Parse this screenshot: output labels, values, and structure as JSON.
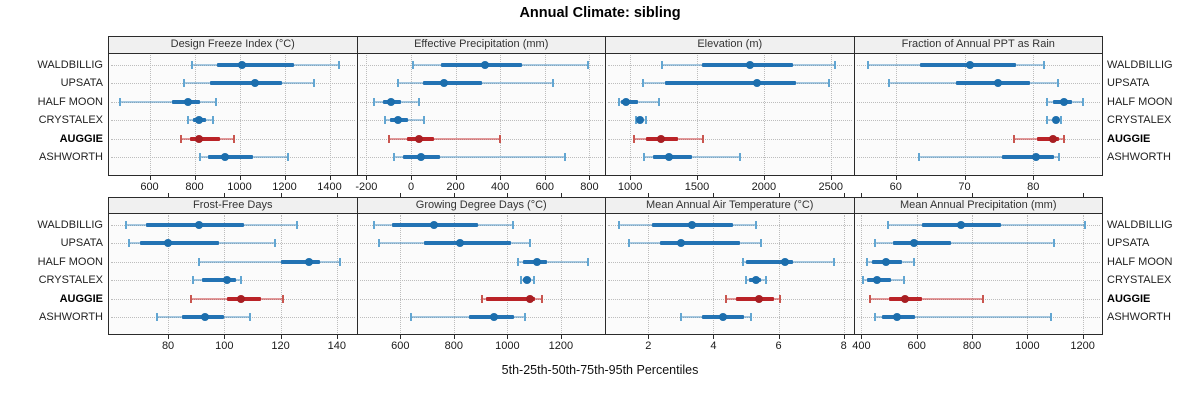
{
  "chart_data": {
    "type": "dotplot-percentiles",
    "title": "Annual Climate: sibling",
    "caption": "5th-25th-50th-75th-95th Percentiles",
    "percentile_labels": [
      "5th",
      "25th",
      "50th",
      "75th",
      "95th"
    ],
    "stations": [
      "WALDBILLIG",
      "UPSATA",
      "HALF MOON",
      "CRYSTALEX",
      "AUGGIE",
      "ASHWORTH"
    ],
    "highlight_station": "AUGGIE",
    "legend_position": "none",
    "grid": true,
    "panels": [
      {
        "title": "Design Freeze Index (°C)",
        "grid_row": 0,
        "grid_col": 0,
        "xlim": [
          420,
          1520
        ],
        "ticks": [
          600,
          800,
          1000,
          1200,
          1400
        ],
        "values": [
          [
            790,
            900,
            1010,
            1240,
            1440
          ],
          [
            755,
            870,
            1070,
            1190,
            1330
          ],
          [
            470,
            700,
            770,
            825,
            895
          ],
          [
            770,
            795,
            820,
            850,
            880
          ],
          [
            740,
            780,
            818,
            915,
            975
          ],
          [
            825,
            860,
            935,
            1060,
            1215
          ]
        ]
      },
      {
        "title": "Effective Precipitation (mm)",
        "grid_row": 0,
        "grid_col": 1,
        "xlim": [
          -240,
          870
        ],
        "ticks": [
          -200,
          0,
          200,
          400,
          600,
          800
        ],
        "values": [
          [
            10,
            135,
            330,
            500,
            795
          ],
          [
            -60,
            55,
            150,
            320,
            635
          ],
          [
            -165,
            -125,
            -90,
            -45,
            35
          ],
          [
            -115,
            -95,
            -60,
            -15,
            60
          ],
          [
            -100,
            -20,
            35,
            105,
            400
          ],
          [
            -75,
            -35,
            45,
            130,
            690
          ]
        ]
      },
      {
        "title": "Elevation (m)",
        "grid_row": 0,
        "grid_col": 2,
        "xlim": [
          820,
          2670
        ],
        "ticks": [
          1000,
          1500,
          2000,
          2500
        ],
        "values": [
          [
            1240,
            1540,
            1900,
            2220,
            2530
          ],
          [
            1100,
            1260,
            1945,
            2240,
            2490
          ],
          [
            920,
            935,
            970,
            1060,
            1215
          ],
          [
            1045,
            1055,
            1075,
            1090,
            1120
          ],
          [
            1030,
            1120,
            1230,
            1355,
            1545
          ],
          [
            1105,
            1170,
            1290,
            1465,
            1820
          ]
        ]
      },
      {
        "title": "Fraction of Annual PPT as Rain",
        "grid_row": 0,
        "grid_col": 3,
        "xlim": [
          54,
          90
        ],
        "ticks": [
          60,
          70,
          80
        ],
        "values": [
          [
            56,
            63.5,
            70.8,
            77.5,
            81.5
          ],
          [
            59,
            68.8,
            74.8,
            79.5,
            83.6
          ],
          [
            82,
            82.9,
            84.4,
            85.7,
            87.2
          ],
          [
            82,
            82.8,
            83.3,
            83.8,
            84.1
          ],
          [
            77.2,
            80.6,
            82.9,
            83.8,
            84.5
          ],
          [
            63.4,
            75.5,
            80.4,
            83,
            83.7
          ]
        ]
      },
      {
        "title": "Frost-Free Days",
        "grid_row": 1,
        "grid_col": 0,
        "xlim": [
          59,
          147
        ],
        "ticks": [
          80,
          100,
          120,
          140
        ],
        "values": [
          [
            65,
            72,
            91,
            107,
            126
          ],
          [
            66,
            70,
            80,
            98,
            118
          ],
          [
            91,
            120,
            130,
            134,
            141
          ],
          [
            89,
            92,
            101,
            104,
            106
          ],
          [
            88,
            101,
            106,
            113,
            121
          ],
          [
            76,
            85,
            93,
            100,
            109
          ]
        ]
      },
      {
        "title": "Growing Degree Days (°C)",
        "grid_row": 1,
        "grid_col": 1,
        "xlim": [
          440,
          1365
        ],
        "ticks": [
          600,
          800,
          1000,
          1200
        ],
        "values": [
          [
            500,
            570,
            727,
            890,
            1020
          ],
          [
            520,
            690,
            822,
            1015,
            1085
          ],
          [
            1040,
            1060,
            1110,
            1150,
            1300
          ],
          [
            1050,
            1060,
            1073,
            1090,
            1100
          ],
          [
            905,
            920,
            1085,
            1105,
            1130
          ],
          [
            640,
            855,
            950,
            1025,
            1065
          ]
        ]
      },
      {
        "title": "Mean Annual Air Temperature (°C)",
        "grid_row": 1,
        "grid_col": 2,
        "xlim": [
          0.7,
          8.3
        ],
        "ticks": [
          2,
          4,
          6,
          8
        ],
        "values": [
          [
            1.1,
            2.1,
            3.35,
            4.6,
            5.3
          ],
          [
            1.4,
            2.35,
            3.0,
            4.8,
            5.45
          ],
          [
            4.9,
            5.0,
            6.2,
            6.45,
            7.7
          ],
          [
            5.0,
            5.1,
            5.3,
            5.45,
            5.6
          ],
          [
            4.4,
            4.7,
            5.4,
            5.85,
            6.05
          ],
          [
            3.0,
            3.65,
            4.3,
            4.95,
            5.15
          ]
        ]
      },
      {
        "title": "Mean Annual Precipitation (mm)",
        "grid_row": 1,
        "grid_col": 3,
        "xlim": [
          375,
          1270
        ],
        "ticks": [
          400,
          600,
          800,
          1000,
          1200
        ],
        "values": [
          [
            495,
            620,
            760,
            905,
            1210
          ],
          [
            450,
            515,
            590,
            725,
            1095
          ],
          [
            420,
            440,
            490,
            548,
            590
          ],
          [
            407,
            422,
            458,
            508,
            555
          ],
          [
            432,
            500,
            558,
            620,
            840
          ],
          [
            450,
            476,
            530,
            595,
            1085
          ]
        ]
      }
    ]
  },
  "colors": {
    "blue_series": {
      "range": "rgba(49,130,189,0.42)",
      "cap": "#62a6d2",
      "bar": "#2373b4",
      "median": "#1c6ead"
    },
    "red_series": {
      "range": "rgba(198,36,38,0.45)",
      "cap": "#c9564f",
      "bar": "#ba2327",
      "median": "#a81e22"
    },
    "grid": "#bdbdbd",
    "frame": "#2b2b2b",
    "panel_bg": "#fbfbfb",
    "header_bg": "#f0f0f0",
    "text": "#1a1a1a"
  }
}
